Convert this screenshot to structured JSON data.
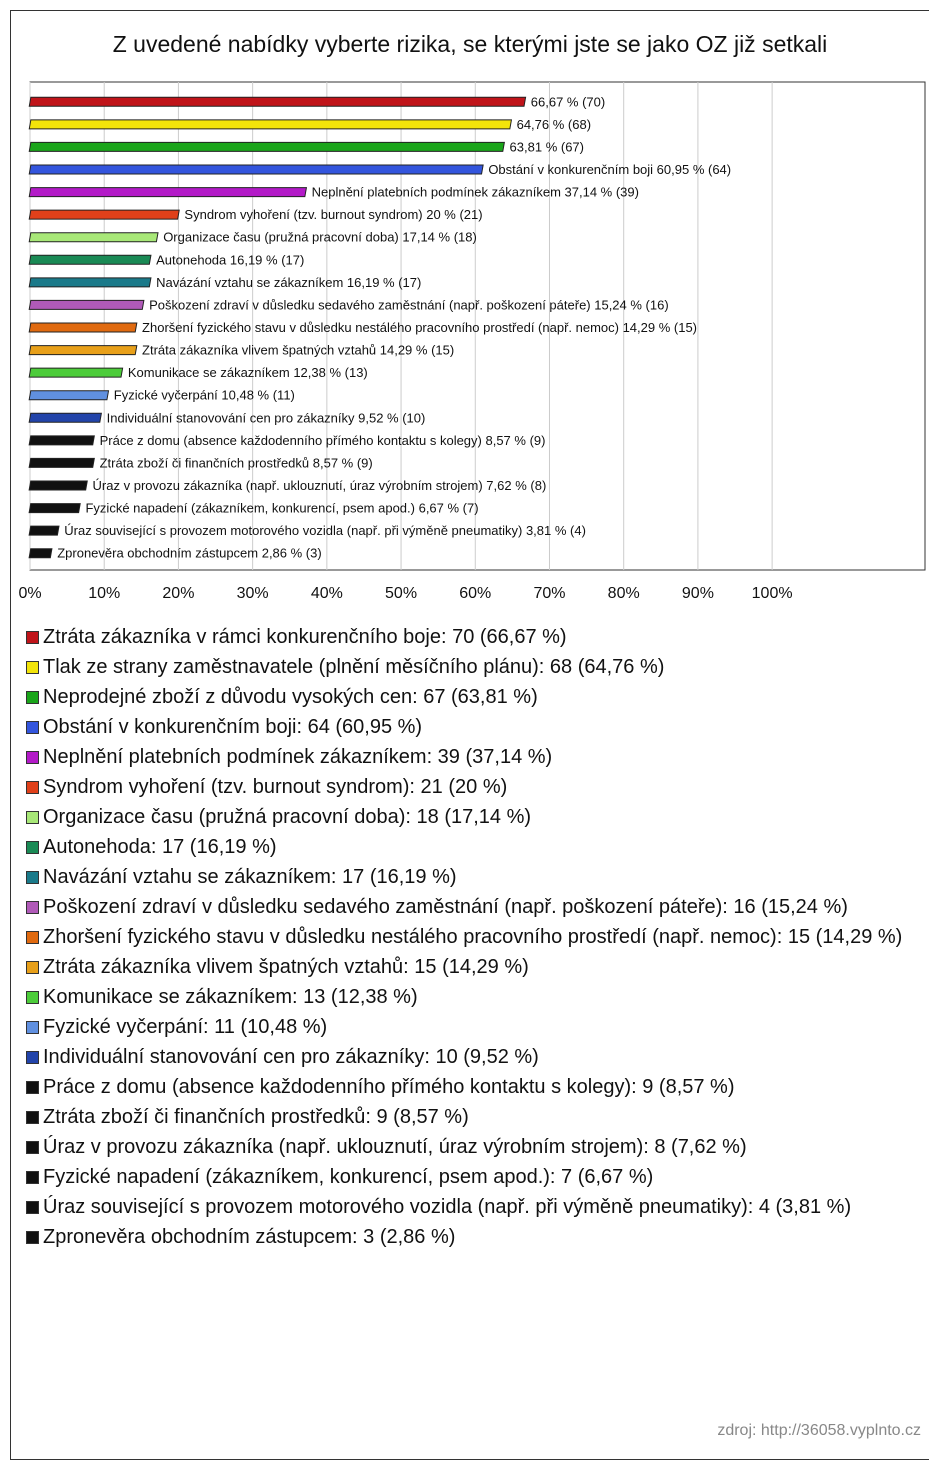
{
  "chart_data": {
    "type": "bar",
    "orientation": "horizontal",
    "title": "Z uvedené nabídky vyberte rizika, se kterými jste se jako OZ již setkali",
    "values": [
      66.67,
      64.76,
      63.81,
      60.95,
      37.14,
      20,
      17.14,
      16.19,
      16.19,
      15.24,
      14.29,
      14.29,
      12.38,
      10.48,
      9.52,
      8.57,
      8.57,
      7.62,
      6.67,
      3.81,
      2.86
    ],
    "value_labels": [
      "66,67 % (70)",
      "64,76 % (68)",
      "63,81 % (67)",
      "Obstání v konkurenčním boji 60,95 % (64)",
      "Neplnění platebních podmínek zákazníkem 37,14 % (39)",
      "Syndrom vyhoření (tzv. burnout syndrom) 20 % (21)",
      "Organizace času (pružná pracovní doba) 17,14 % (18)",
      "Autonehoda 16,19 % (17)",
      "Navázání vztahu se zákazníkem 16,19 % (17)",
      "Poškození zdraví v důsledku sedavého zaměstnání (např. poškození páteře) 15,24 % (16)",
      "Zhoršení fyzického stavu v důsledku nestálého pracovního prostředí (např. nemoc) 14,29 % (15)",
      "Ztráta zákazníka vlivem špatných vztahů 14,29 % (15)",
      "Komunikace se zákazníkem 12,38 % (13)",
      "Fyzické vyčerpání 10,48 % (11)",
      "Individuální stanovování cen pro zákazníky 9,52 % (10)",
      "Práce z domu (absence každodenního přímého kontaktu s kolegy) 8,57 % (9)",
      "Ztráta zboží či finančních prostředků 8,57 % (9)",
      "Úraz v provozu zákazníka (např. uklouznutí, úraz výrobním strojem) 7,62 % (8)",
      "Fyzické napadení (zákazníkem, konkurencí, psem apod.) 6,67 % (7)",
      "Úraz související s provozem motorového vozidla (např. při výměně pneumatiky) 3,81 % (4)",
      "Zpronevěra obchodním zástupcem 2,86 % (3)"
    ],
    "legend_entries": [
      "Ztráta zákazníka v rámci konkurenčního boje: 70 (66,67 %)",
      "Tlak ze strany zaměstnavatele (plnění měsíčního plánu): 68 (64,76 %)",
      "Neprodejné zboží z důvodu vysokých cen: 67 (63,81 %)",
      "Obstání v konkurenčním boji: 64 (60,95 %)",
      "Neplnění platebních podmínek zákazníkem: 39 (37,14 %)",
      "Syndrom vyhoření (tzv. burnout syndrom): 21 (20 %)",
      "Organizace času (pružná pracovní doba): 18 (17,14 %)",
      "Autonehoda: 17 (16,19 %)",
      "Navázání vztahu se zákazníkem: 17 (16,19 %)",
      "Poškození zdraví v důsledku sedavého zaměstnání (např. poškození páteře): 16 (15,24 %)",
      "Zhoršení fyzického stavu v důsledku nestálého pracovního prostředí (např. nemoc): 15 (14,29 %)",
      "Ztráta zákazníka vlivem špatných vztahů: 15 (14,29 %)",
      "Komunikace se zákazníkem: 13 (12,38 %)",
      "Fyzické vyčerpání: 11 (10,48 %)",
      "Individuální stanovování cen pro zákazníky: 10 (9,52 %)",
      "Práce z domu (absence každodenního přímého kontaktu s kolegy): 9 (8,57 %)",
      "Ztráta zboží či finančních prostředků: 9 (8,57 %)",
      "Úraz v provozu zákazníka (např. uklouznutí, úraz výrobním strojem): 8 (7,62 %)",
      "Fyzické napadení (zákazníkem, konkurencí, psem apod.): 7 (6,67 %)",
      "Úraz související s provozem motorového vozidla (např. při výměně pneumatiky): 4 (3,81 %)",
      "Zpronevěra obchodním zástupcem: 3 (2,86 %)"
    ],
    "colors": [
      "#c0141a",
      "#f2e40a",
      "#1aa51a",
      "#3355dd",
      "#b31ac8",
      "#e0401a",
      "#a8e878",
      "#1a8a55",
      "#1a7a8a",
      "#b05ab8",
      "#e06a10",
      "#e8a01a",
      "#4ccc3a",
      "#6090e0",
      "#2244aa",
      "#111111",
      "#111111",
      "#111111",
      "#111111",
      "#111111",
      "#111111"
    ],
    "xlim": [
      0,
      120.6
    ],
    "xticks": [
      {
        "value": 0,
        "label": "0%"
      },
      {
        "value": 10,
        "label": "10%"
      },
      {
        "value": 20,
        "label": "20%"
      },
      {
        "value": 30,
        "label": "30%"
      },
      {
        "value": 40,
        "label": "40%"
      },
      {
        "value": 50,
        "label": "50%"
      },
      {
        "value": 60,
        "label": "60%"
      },
      {
        "value": 70,
        "label": "70%"
      },
      {
        "value": 80,
        "label": "80%"
      },
      {
        "value": 90,
        "label": "90%"
      },
      {
        "value": 100,
        "label": "100%"
      }
    ],
    "grid": true,
    "source": "zdroj: http://36058.vyplnto.cz"
  }
}
